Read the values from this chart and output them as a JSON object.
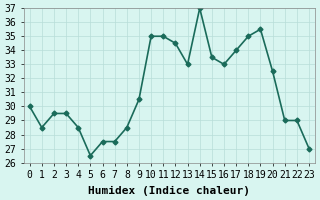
{
  "x": [
    0,
    1,
    2,
    3,
    4,
    5,
    6,
    7,
    8,
    9,
    10,
    11,
    12,
    13,
    14,
    15,
    16,
    17,
    18,
    19,
    20,
    21,
    22,
    23
  ],
  "y": [
    30,
    28.5,
    29.5,
    29.5,
    28.5,
    26.5,
    27.5,
    27.5,
    28.5,
    30.5,
    35,
    35,
    34.5,
    33,
    37,
    33.5,
    33,
    34,
    35,
    35.5,
    32.5,
    29,
    29,
    27
  ],
  "xlabel": "Humidex (Indice chaleur)",
  "ylabel": "",
  "ylim": [
    26,
    37
  ],
  "xlim": [
    -0.5,
    23.5
  ],
  "yticks": [
    26,
    27,
    28,
    29,
    30,
    31,
    32,
    33,
    34,
    35,
    36,
    37
  ],
  "xticks": [
    0,
    1,
    2,
    3,
    4,
    5,
    6,
    7,
    8,
    9,
    10,
    11,
    12,
    13,
    14,
    15,
    16,
    17,
    18,
    19,
    20,
    21,
    22,
    23
  ],
  "line_color": "#1a6b5a",
  "marker": "D",
  "marker_size": 2.5,
  "bg_color": "#d8f5f0",
  "grid_color": "#b8ddd8",
  "axes_bg": "#d8f5f0",
  "xlabel_fontsize": 8,
  "tick_fontsize": 7,
  "line_width": 1.2
}
